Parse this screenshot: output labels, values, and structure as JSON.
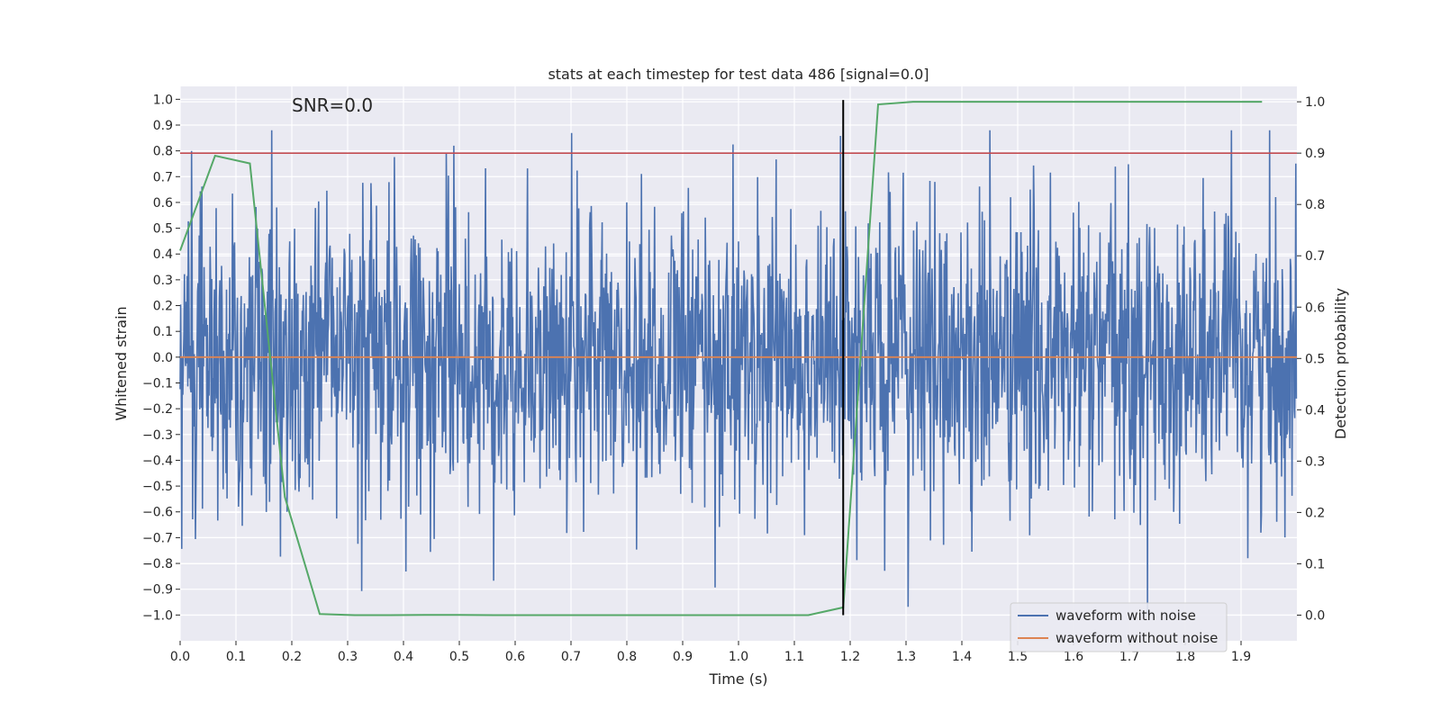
{
  "chart_data": {
    "type": "line",
    "title": "stats at each timestep for test data 486 [signal=0.0]",
    "annotation": "SNR=0.0",
    "xlabel": "Time (s)",
    "ylabel_left": "Whitened strain",
    "ylabel_right": "Detection probability",
    "xlim": [
      0.0,
      2.0
    ],
    "ylim_left": [
      -1.1,
      1.05
    ],
    "ylim_right": [
      -0.05,
      1.03
    ],
    "x_ticks": [
      0.0,
      0.1,
      0.2,
      0.3,
      0.4,
      0.5,
      0.6,
      0.7,
      0.8,
      0.9,
      1.0,
      1.1,
      1.2,
      1.3,
      1.4,
      1.5,
      1.6,
      1.7,
      1.8,
      1.9
    ],
    "x_tick_labels": [
      "0.0",
      "0.1",
      "0.2",
      "0.3",
      "0.4",
      "0.5",
      "0.6",
      "0.7",
      "0.8",
      "0.9",
      "1.0",
      "1.1",
      "1.2",
      "1.3",
      "1.4",
      "1.5",
      "1.6",
      "1.7",
      "1.8",
      "1.9"
    ],
    "y_left_ticks": [
      1.0,
      0.9,
      0.8,
      0.7,
      0.6,
      0.5,
      0.4,
      0.3,
      0.2,
      0.1,
      0.0,
      -0.1,
      -0.2,
      -0.3,
      -0.4,
      -0.5,
      -0.6,
      -0.7,
      -0.8,
      -0.9,
      -1.0
    ],
    "y_left_tick_labels": [
      "1.0",
      "0.9",
      "0.8",
      "0.7",
      "0.6",
      "0.5",
      "0.4",
      "0.3",
      "0.2",
      "0.1",
      "0.0",
      "−0.1",
      "−0.2",
      "−0.3",
      "−0.4",
      "−0.5",
      "−0.6",
      "−0.7",
      "−0.8",
      "−0.9",
      "−1.0"
    ],
    "y_right_ticks": [
      1.0,
      0.9,
      0.8,
      0.7,
      0.6,
      0.5,
      0.4,
      0.3,
      0.2,
      0.1,
      0.0
    ],
    "y_right_tick_labels": [
      "1.0",
      "0.9",
      "0.8",
      "0.7",
      "0.6",
      "0.5",
      "0.4",
      "0.3",
      "0.2",
      "0.1",
      "0.0"
    ],
    "series": [
      {
        "name": "waveform with noise",
        "axis": "left",
        "color": "#4c72b0",
        "kind": "noise",
        "n_points": 2048,
        "sigma": 0.3,
        "range": [
          -1.0,
          0.88
        ]
      },
      {
        "name": "waveform without noise",
        "axis": "left",
        "color": "#dd8452",
        "x": [
          0.0,
          2.0
        ],
        "y": [
          0.0,
          0.0
        ]
      },
      {
        "name": "detection probability",
        "axis": "right",
        "color": "#55a868",
        "x": [
          0.0,
          0.0625,
          0.125,
          0.1875,
          0.25,
          0.3125,
          0.375,
          0.4375,
          0.5,
          0.5625,
          0.625,
          0.6875,
          0.75,
          0.8125,
          0.875,
          0.9375,
          1.0,
          1.0625,
          1.125,
          1.1875,
          1.25,
          1.3125,
          1.375,
          1.4375,
          1.5,
          1.5625,
          1.625,
          1.6875,
          1.75,
          1.8125,
          1.875,
          1.9375
        ],
        "y": [
          0.71,
          0.895,
          0.88,
          0.23,
          0.002,
          0.0,
          0.0,
          0.0005,
          0.0005,
          0.0,
          0.0,
          0.0,
          0.0,
          0.0,
          0.0,
          0.0,
          0.0,
          0.0,
          0.0,
          0.015,
          0.995,
          1.0,
          1.0,
          1.0,
          1.0,
          1.0,
          1.0,
          1.0,
          1.0,
          1.0,
          1.0,
          1.0
        ]
      }
    ],
    "threshold": {
      "value": 0.9,
      "axis": "right",
      "color": "#c44e52"
    },
    "marker": {
      "x": 1.1875,
      "color": "#000000"
    },
    "legend": {
      "position": "lower-right",
      "entries": [
        {
          "label": "waveform with noise",
          "color": "#4c72b0"
        },
        {
          "label": "waveform without noise",
          "color": "#dd8452"
        }
      ]
    },
    "grid": true,
    "background_color": "#eaeaf2"
  }
}
